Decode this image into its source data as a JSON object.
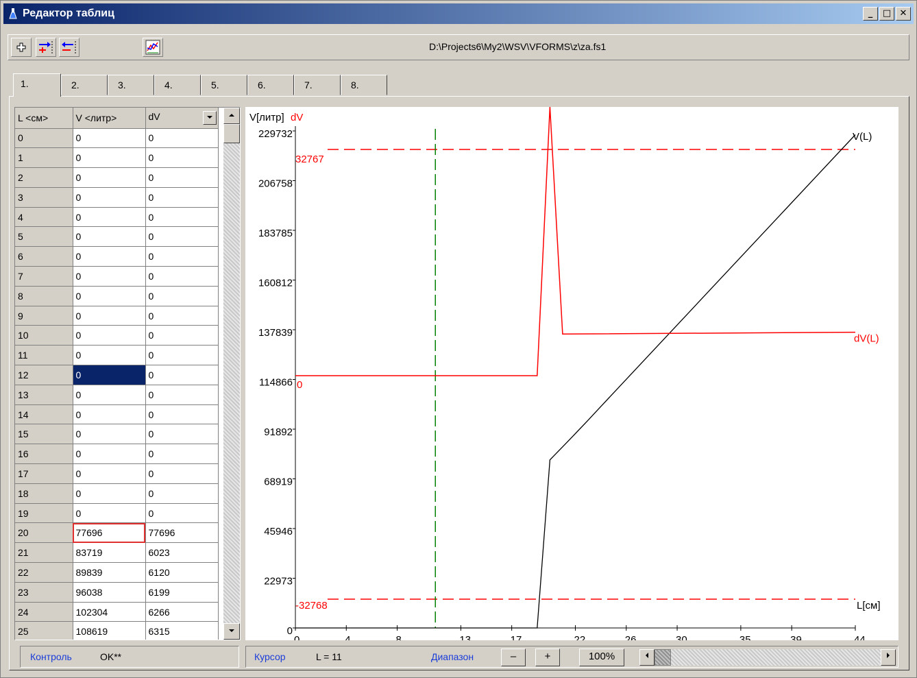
{
  "window": {
    "title": "Редактор таблиц",
    "minimize": "_",
    "maximize": "□",
    "close": "✕"
  },
  "toolbar": {
    "file_path": "D:\\Projects6\\My2\\WSV\\VFORMS\\z\\za.fs1",
    "icons": [
      "plus-icon",
      "insert-row-icon",
      "delete-row-icon",
      "chart-icon"
    ]
  },
  "tabs": [
    "1.",
    "2.",
    "3.",
    "4.",
    "5.",
    "6.",
    "7.",
    "8."
  ],
  "grid": {
    "headers": [
      "L <см>",
      "V <литр>",
      "dV"
    ],
    "rows": [
      [
        "0",
        "0",
        "0"
      ],
      [
        "1",
        "0",
        "0"
      ],
      [
        "2",
        "0",
        "0"
      ],
      [
        "3",
        "0",
        "0"
      ],
      [
        "4",
        "0",
        "0"
      ],
      [
        "5",
        "0",
        "0"
      ],
      [
        "6",
        "0",
        "0"
      ],
      [
        "7",
        "0",
        "0"
      ],
      [
        "8",
        "0",
        "0"
      ],
      [
        "9",
        "0",
        "0"
      ],
      [
        "10",
        "0",
        "0"
      ],
      [
        "11",
        "0",
        "0"
      ],
      [
        "12",
        "0",
        "0"
      ],
      [
        "13",
        "0",
        "0"
      ],
      [
        "14",
        "0",
        "0"
      ],
      [
        "15",
        "0",
        "0"
      ],
      [
        "16",
        "0",
        "0"
      ],
      [
        "17",
        "0",
        "0"
      ],
      [
        "18",
        "0",
        "0"
      ],
      [
        "19",
        "0",
        "0"
      ],
      [
        "20",
        "77696",
        "77696"
      ],
      [
        "21",
        "83719",
        "6023"
      ],
      [
        "22",
        "89839",
        "6120"
      ],
      [
        "23",
        "96038",
        "6199"
      ],
      [
        "24",
        "102304",
        "6266"
      ],
      [
        "25",
        "108619",
        "6315"
      ]
    ],
    "selected_row": 12,
    "focused_row": 20
  },
  "chart_data": {
    "type": "line",
    "y_axis_label": "V[литр]",
    "dv_axis_label": "dV",
    "x_axis_label": "L[см]",
    "x_ticks": [
      "0",
      "4",
      "8",
      "13",
      "17",
      "22",
      "26",
      "30",
      "35",
      "39",
      "44"
    ],
    "x_range": [
      0,
      44
    ],
    "y_ticks": [
      "0",
      "22973",
      "45946",
      "68919",
      "91892",
      "114866",
      "137839",
      "160812",
      "183785",
      "206758",
      "229732"
    ],
    "y_range": [
      0,
      229732
    ],
    "dv_range": [
      -32768,
      32767
    ],
    "dv_limits": {
      "upper": "32767",
      "lower": "-32768",
      "zero": "0"
    },
    "cursor": 11,
    "series": [
      {
        "name": "V(L)",
        "color": "#000000",
        "x": [
          0,
          19,
          20,
          21,
          22,
          23,
          24,
          25,
          44
        ],
        "y": [
          0,
          0,
          77696,
          83719,
          89839,
          96038,
          102304,
          108619,
          228000
        ]
      },
      {
        "name": "dV(L)",
        "color": "#ff0000",
        "x": [
          0,
          19,
          20,
          21,
          44
        ],
        "y": [
          0,
          0,
          77696,
          6023,
          6300
        ]
      }
    ]
  },
  "status_left": {
    "control_label": "Контроль",
    "control_value": "OK**"
  },
  "status_right": {
    "cursor_label": "Курсор",
    "cursor_value": "L = 11",
    "range_label": "Диапазон",
    "minus": "–",
    "plus": "+",
    "zoom": "100%"
  }
}
